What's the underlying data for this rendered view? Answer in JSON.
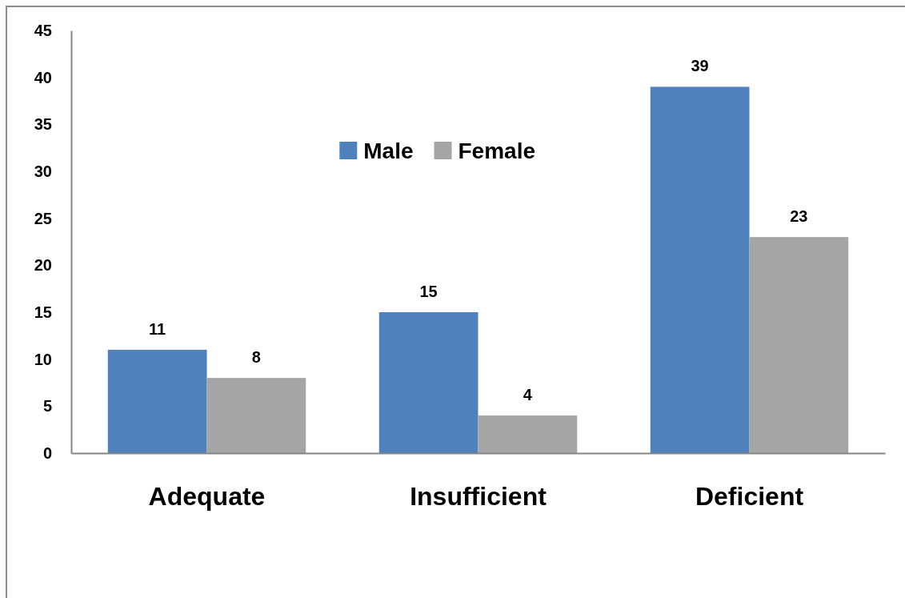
{
  "chart_data": {
    "type": "bar",
    "categories": [
      "Adequate",
      "Insufficient",
      "Deficient"
    ],
    "series": [
      {
        "name": "Male",
        "color": "#4f81bd",
        "values": [
          11,
          15,
          39
        ]
      },
      {
        "name": "Female",
        "color": "#a5a5a5",
        "values": [
          8,
          4,
          23
        ]
      }
    ],
    "ylim": [
      0,
      45
    ],
    "yticks": [
      0,
      5,
      10,
      15,
      20,
      25,
      30,
      35,
      40,
      45
    ],
    "data_labels": true,
    "legend": "top"
  }
}
